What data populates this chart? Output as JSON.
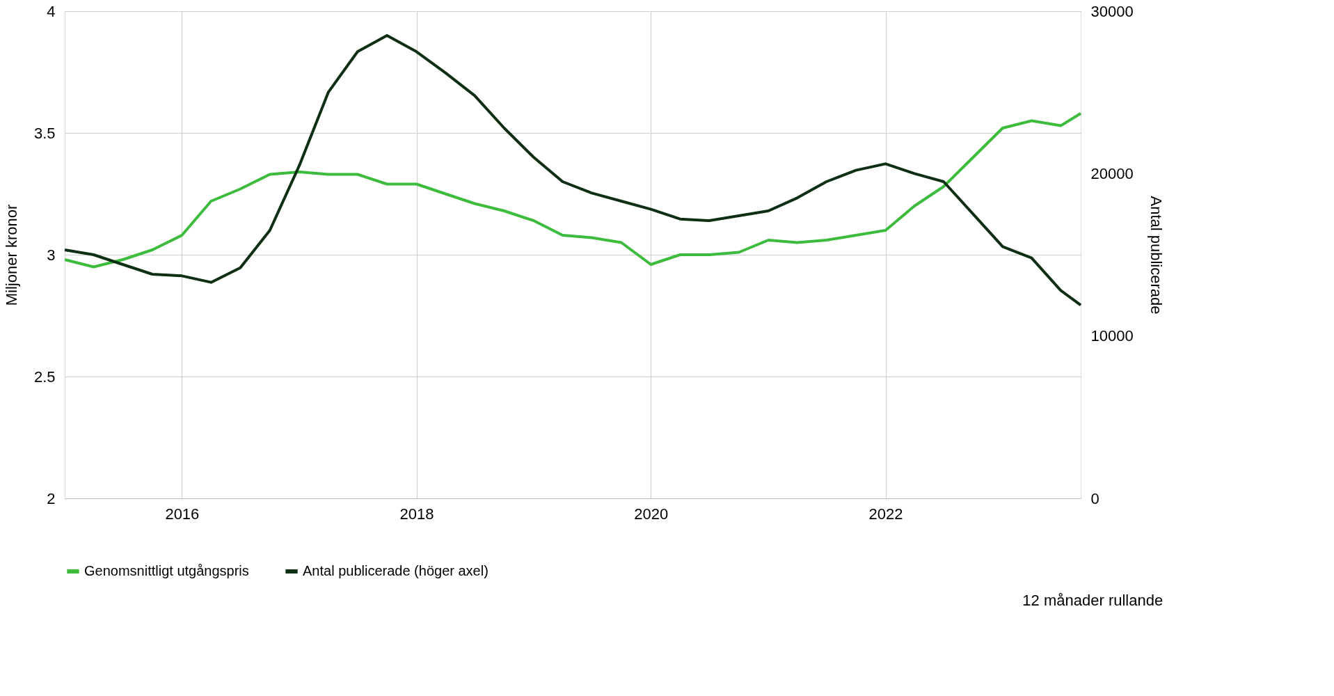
{
  "chart_data": {
    "type": "line",
    "xlabel": null,
    "ylabel": "Miljoner kronor",
    "y2label": "Antal publicerade",
    "x": [
      "2015-01",
      "2015-04",
      "2015-07",
      "2015-10",
      "2016-01",
      "2016-04",
      "2016-07",
      "2016-10",
      "2017-01",
      "2017-04",
      "2017-07",
      "2017-10",
      "2018-01",
      "2018-04",
      "2018-07",
      "2018-10",
      "2019-01",
      "2019-04",
      "2019-07",
      "2019-10",
      "2020-01",
      "2020-04",
      "2020-07",
      "2020-10",
      "2021-01",
      "2021-04",
      "2021-07",
      "2021-10",
      "2022-01",
      "2022-04",
      "2022-07",
      "2022-10",
      "2023-01",
      "2023-04",
      "2023-07",
      "2023-09"
    ],
    "series": [
      {
        "name": "Genomsnittligt utgångspris",
        "color": "#3dbb3d",
        "values": [
          2.98,
          2.95,
          2.98,
          3.02,
          3.08,
          3.22,
          3.27,
          3.33,
          3.34,
          3.33,
          3.33,
          3.29,
          3.29,
          3.25,
          3.21,
          3.18,
          3.14,
          3.08,
          3.07,
          3.05,
          2.96,
          3.0,
          3.0,
          3.01,
          3.06,
          3.05,
          3.06,
          3.08,
          3.1,
          3.2,
          3.28,
          3.4,
          3.52,
          3.55,
          3.53,
          3.58
        ]
      },
      {
        "name": "Antal publicerade (höger axel)",
        "color": "#0f2f14",
        "axis": "y2",
        "values": [
          15300,
          15000,
          14400,
          13800,
          13700,
          13300,
          14200,
          16500,
          20500,
          25000,
          27500,
          28500,
          27500,
          26200,
          24800,
          22800,
          21000,
          19500,
          18800,
          18300,
          17800,
          17200,
          17100,
          17400,
          17700,
          18500,
          19500,
          20200,
          20600,
          20000,
          19500,
          17500,
          15500,
          14800,
          12800,
          11900
        ]
      }
    ],
    "xlim": [
      "2015-01",
      "2023-09"
    ],
    "xticks": [
      "2016",
      "2018",
      "2020",
      "2022"
    ],
    "ylim": [
      2,
      4
    ],
    "yticks": [
      2,
      2.5,
      3,
      3.5,
      4
    ],
    "y2lim": [
      0,
      30000
    ],
    "y2ticks": [
      0,
      10000,
      20000,
      30000
    ],
    "grid": true,
    "legend": "bottom",
    "annotations": [
      "12 månader rullande"
    ]
  }
}
